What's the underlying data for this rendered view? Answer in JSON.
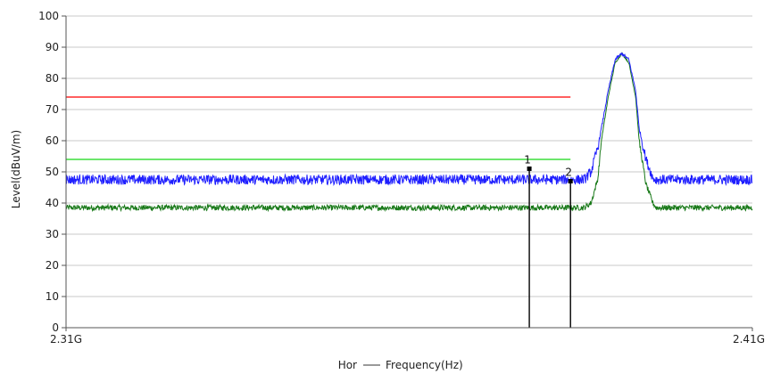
{
  "chart_data": {
    "type": "line",
    "xlabel": "Frequency(Hz)",
    "xlabel_prefix": "Hor",
    "ylabel": "Level(dBuV/m)",
    "xlim": [
      2.31,
      2.41
    ],
    "ylim": [
      0,
      100
    ],
    "y_ticks": [
      0,
      10,
      20,
      30,
      40,
      50,
      60,
      70,
      80,
      90,
      100
    ],
    "x_tick_labels": [
      "2.31G",
      "2.41G"
    ],
    "grid": true,
    "colors": {
      "peak": "#1f1fff",
      "average": "#1a7a1a",
      "limit_peak": "#ff2a2a",
      "limit_average": "#3dde3d",
      "marker": "#000000",
      "grid": "#c8c8c8",
      "axis": "#555555"
    },
    "series": [
      {
        "role": "peak",
        "x": [
          2.31,
          2.385,
          2.3855,
          2.3865,
          2.3875,
          2.388,
          2.389,
          2.39,
          2.391,
          2.392,
          2.393,
          2.3935,
          2.3945,
          2.3955,
          2.396,
          2.41
        ],
        "y": [
          47.5,
          47.5,
          47.5,
          50,
          58,
          64,
          76,
          86,
          88,
          86,
          76,
          64,
          54,
          48,
          47.5,
          47.5
        ]
      },
      {
        "role": "average",
        "x": [
          2.31,
          2.385,
          2.3855,
          2.3865,
          2.3875,
          2.388,
          2.389,
          2.39,
          2.391,
          2.392,
          2.393,
          2.3935,
          2.3945,
          2.3955,
          2.396,
          2.41
        ],
        "y": [
          38.5,
          38.5,
          38.5,
          40,
          48,
          60,
          74,
          85,
          88,
          85,
          74,
          60,
          46,
          40,
          38.5,
          38.5
        ]
      },
      {
        "role": "limit_peak",
        "x": [
          2.31,
          2.3835
        ],
        "y": [
          74,
          74
        ]
      },
      {
        "role": "limit_average",
        "x": [
          2.31,
          2.3835
        ],
        "y": [
          54,
          54
        ]
      }
    ],
    "markers": [
      {
        "label": "1",
        "x": 2.3775,
        "y": 51
      },
      {
        "label": "2",
        "x": 2.3835,
        "y": 47
      }
    ]
  }
}
